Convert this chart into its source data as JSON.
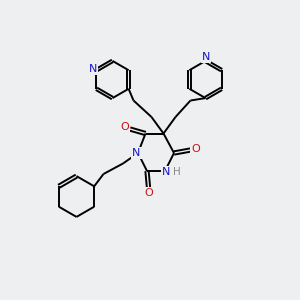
{
  "background_color": "#eeeff0",
  "bond_color": "#000000",
  "n_color": "#1414cc",
  "o_color": "#cc1414",
  "h_color": "#888888",
  "line_width": 1.4,
  "figsize": [
    3.0,
    3.0
  ],
  "dpi": 100,
  "xlim": [
    0,
    10
  ],
  "ylim": [
    0,
    10
  ]
}
